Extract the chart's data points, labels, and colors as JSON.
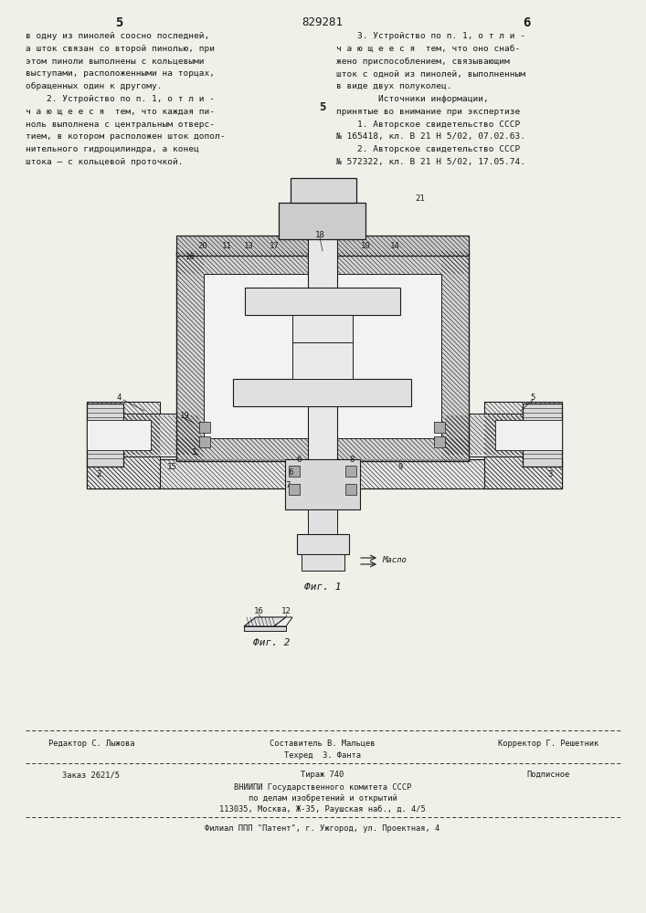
{
  "page_number_left": "5",
  "patent_number": "829281",
  "page_number_right": "6",
  "col_left_text": [
    "в одну из пинолей соосно последней,",
    "а шток связан со второй пинолью, при",
    "этом пиноли выполнены с кольцевыми",
    "выступами, расположенными на торцах,",
    "обращенных один к другому.",
    "    2. Устройство по п. 1, о т л и -",
    "ч а ю щ е е с я  тем, что каждая пи-",
    "ноль выполнена с центральным отверс-",
    "тием, в котором расположен шток допол-",
    "нительного гидроцилиндра, а конец",
    "штока – с кольцевой проточкой."
  ],
  "col_right_text": [
    "    3. Устройство по п. 1, о т л и -",
    "ч а ю щ е е с я  тем, что оно снаб-",
    "жено приспособлением, связывающим",
    "шток с одной из пинолей, выполненным",
    "в виде двух полуколец.",
    "        Источники информации,",
    "принятые во внимание при экспертизе",
    "    1. Авторское свидетельство СССР",
    "№ 165418, кл. В 21 Н 5/02, 07.02.63.",
    "    2. Авторское свидетельство СССР",
    "№ 572322, кл. В 21 Н 5/02, 17.05.74."
  ],
  "center_number": "5",
  "fig1_caption": "Фиг. 1",
  "fig2_caption": "Фиг. 2",
  "footer_line1_left": "Редактор С. Лыжова",
  "footer_line1_center": "Составитель В. Мальцев",
  "footer_line1_right": "Корректор Г. Решетник",
  "footer_line2_center": "Техред  З. Фанта",
  "footer_line3_left": "Заказ 2621/5",
  "footer_line3_center": "Тираж 740",
  "footer_line3_right": "Подписное",
  "footer_line4": "ВНИИПИ Государственного комитета СССР",
  "footer_line5": "по делам изобретений и открытий",
  "footer_line6": "113035, Москва, Ж-35, Раушская наб., д. 4/5",
  "footer_line7": "Филиал ППП \"Патент\", г. Ужгород, ул. Проектная, 4",
  "bg_color": "#f0efe8",
  "text_color": "#1a1a1a",
  "line_color": "#1a1a1a",
  "hatch_color": "#2a2a2a"
}
